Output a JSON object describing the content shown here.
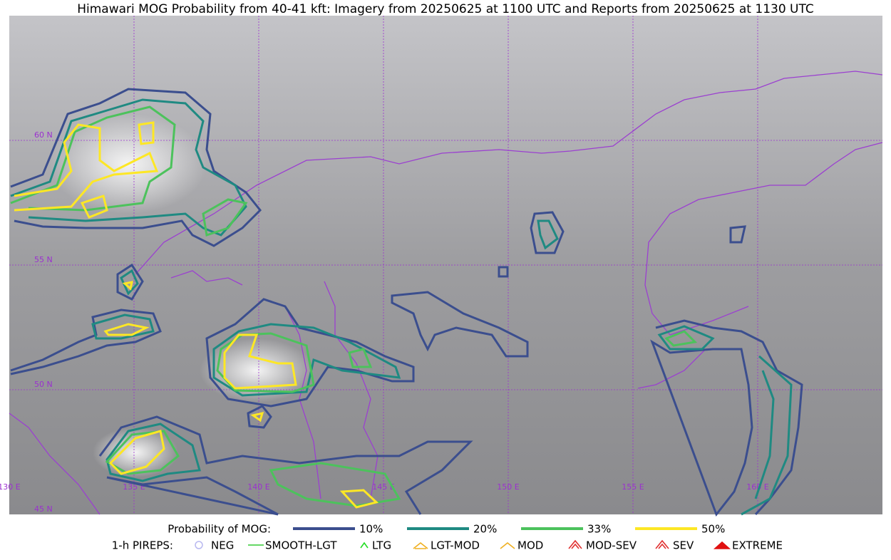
{
  "title": "Himawari MOG Probability from 40-41 kft: Imagery from 20250625 at 1100 UTC and Reports from 20250625 at 1130 UTC",
  "map": {
    "lat_labels": [
      "60 N",
      "55 N",
      "50 N",
      "45 N"
    ],
    "lon_labels": [
      "130 E",
      "135 E",
      "140 E",
      "145 E",
      "150 E",
      "155 E",
      "160 E"
    ],
    "grid_color": "#9b30d0"
  },
  "legend": {
    "probability": {
      "label": "Probability of MOG:",
      "items": [
        {
          "label": "10%",
          "color": "#3b4e8e"
        },
        {
          "label": "20%",
          "color": "#1f8a82"
        },
        {
          "label": "33%",
          "color": "#4cc25c"
        },
        {
          "label": "50%",
          "color": "#fde725"
        }
      ]
    },
    "pireps": {
      "label": "1-h PIREPS:",
      "items": [
        {
          "label": "NEG",
          "color": "#b8b8f0"
        },
        {
          "label": "SMOOTH-LGT",
          "color": "#33cc33"
        },
        {
          "label": "LTG",
          "color": "#22dd22"
        },
        {
          "label": "LGT-MOD",
          "color": "#f0b020"
        },
        {
          "label": "MOD",
          "color": "#f0b020"
        },
        {
          "label": "MOD-SEV",
          "color": "#e03030"
        },
        {
          "label": "SEV",
          "color": "#e03030"
        },
        {
          "label": "EXTREME",
          "color": "#e01010"
        }
      ]
    }
  }
}
